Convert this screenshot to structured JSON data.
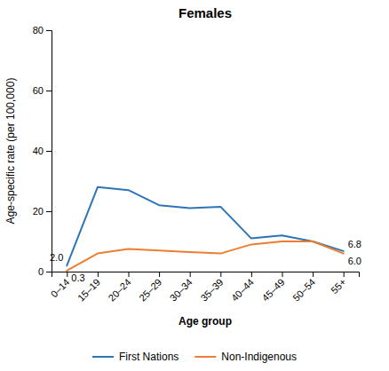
{
  "chart_data": {
    "type": "line",
    "title": "Females",
    "xlabel": "Age group",
    "ylabel": "Age-specific rate (per 100,000)",
    "categories": [
      "0–14",
      "15–19",
      "20–24",
      "25–29",
      "30–34",
      "35–39",
      "40–44",
      "45–49",
      "50–54",
      "55+"
    ],
    "series": [
      {
        "name": "First Nations",
        "color": "#2E75B6",
        "values": [
          2.0,
          28.0,
          27.0,
          22.0,
          21.0,
          21.5,
          11.0,
          12.0,
          10.0,
          6.8
        ]
      },
      {
        "name": "Non-Indigenous",
        "color": "#ED7D31",
        "values": [
          0.3,
          6.0,
          7.5,
          7.0,
          6.5,
          6.0,
          9.0,
          10.0,
          10.0,
          6.0
        ]
      }
    ],
    "ylim": [
      0,
      80
    ],
    "yticks": [
      0,
      20,
      40,
      60,
      80
    ],
    "annotations": [
      {
        "text": "2.0",
        "x": "0–14",
        "y": 2.0
      },
      {
        "text": "0.3",
        "x": "0–14",
        "y": 0.3
      },
      {
        "text": "6.8",
        "x": "55+",
        "y": 6.8
      },
      {
        "text": "6.0",
        "x": "55+",
        "y": 6.0
      }
    ],
    "legend": "bottom",
    "grid": false
  }
}
